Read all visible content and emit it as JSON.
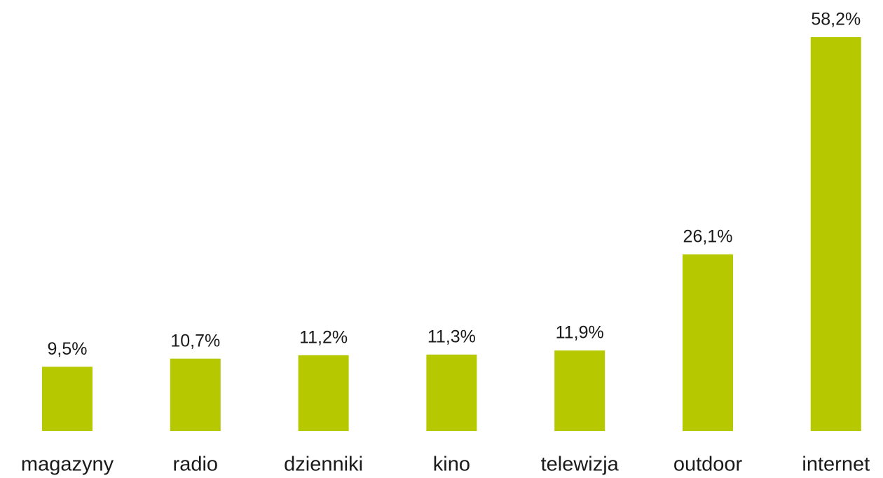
{
  "chart_data": {
    "type": "bar",
    "categories": [
      "magazyny",
      "radio",
      "dzienniki",
      "kino",
      "telewizja",
      "outdoor",
      "internet"
    ],
    "values": [
      9.5,
      10.7,
      11.2,
      11.3,
      11.9,
      26.1,
      58.2
    ],
    "value_labels": [
      "9,5%",
      "10,7%",
      "11,2%",
      "11,3%",
      "11,9%",
      "26,1%",
      "58,2%"
    ],
    "color": "#b5c800",
    "grid": false
  }
}
